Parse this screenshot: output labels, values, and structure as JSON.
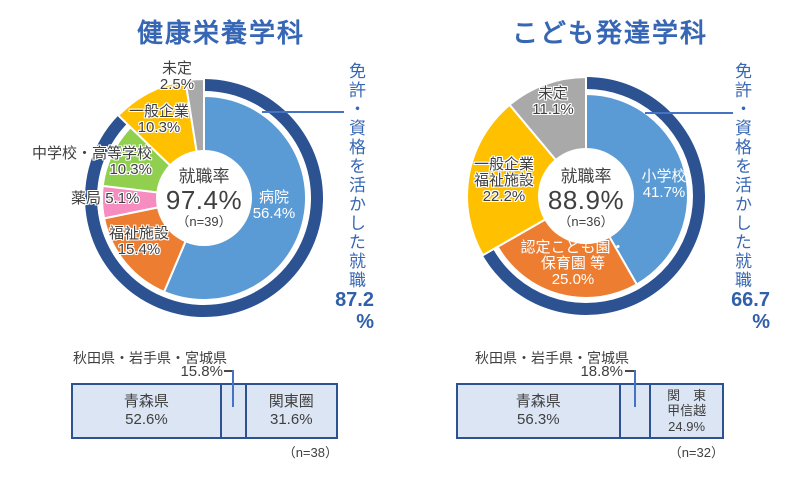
{
  "chart_data": [
    {
      "type": "donut",
      "title": "健康栄養学科",
      "center": {
        "label": "就職率",
        "value": "97.4%",
        "n": "（n=39）"
      },
      "slices": [
        {
          "name": "病院",
          "value": 56.4,
          "pct": "56.4%",
          "color": "#5b9bd5",
          "full": false
        },
        {
          "name": "福祉施設",
          "value": 15.4,
          "pct": "15.4%",
          "color": "#ed7d31",
          "full": false
        },
        {
          "name": "薬局",
          "value": 5.1,
          "pct": "5.1%",
          "color": "#f78cc1",
          "full": false
        },
        {
          "name": "中学校・高等学校",
          "value": 10.3,
          "pct": "10.3%",
          "color": "#90d04e",
          "full": false
        },
        {
          "name": "一般企業",
          "value": 10.3,
          "pct": "10.3%",
          "color": "#ffc000",
          "full": true
        },
        {
          "name": "未定",
          "value": 2.5,
          "pct": "2.5%",
          "color": "#a9a9a9",
          "full": true
        }
      ],
      "ring": {
        "label": "免許・資格を活かした就職",
        "value": 87.2,
        "value_text": "87.2",
        "unit": "%",
        "color": "#2c5291"
      },
      "region_bar": {
        "note_label": "秋田県・岩手県・宮城県",
        "note_pct": "15.8%",
        "note_value": 15.8,
        "segments": [
          {
            "label": "青森県",
            "pct": "52.6%",
            "value": 52.6
          },
          {
            "label": "",
            "pct": "",
            "value": 15.8
          },
          {
            "label": "関東圏",
            "pct": "31.6%",
            "value": 31.6
          }
        ],
        "n": "（n=38）"
      }
    },
    {
      "type": "donut",
      "title": "こども発達学科",
      "center": {
        "label": "就職率",
        "value": "88.9%",
        "n": "（n=36）"
      },
      "slices": [
        {
          "name": "小学校",
          "value": 41.7,
          "pct": "41.7%",
          "color": "#5b9bd5",
          "full": false
        },
        {
          "name": "認定こども園・保育園 等",
          "name_l1": "認定こども園・",
          "name_l2": "保育園 等",
          "value": 25.0,
          "pct": "25.0%",
          "color": "#ed7d31",
          "full": false
        },
        {
          "name": "一般企業福祉施設",
          "name_l1": "一般企業",
          "name_l2": "福祉施設",
          "value": 22.2,
          "pct": "22.2%",
          "color": "#ffc000",
          "full": true
        },
        {
          "name": "未定",
          "value": 11.1,
          "pct": "11.1%",
          "color": "#a9a9a9",
          "full": true
        }
      ],
      "ring": {
        "label": "免許・資格を活かした就職",
        "value": 66.7,
        "value_text": "66.7",
        "unit": "%",
        "color": "#2c5291"
      },
      "region_bar": {
        "note_label": "秋田県・岩手県・宮城県",
        "note_pct": "18.8%",
        "note_value": 18.8,
        "segments": [
          {
            "label": "青森県",
            "pct": "56.3%",
            "value": 56.3
          },
          {
            "label": "",
            "pct": "",
            "value": 18.8
          },
          {
            "label": "関東甲信越",
            "label_l1": "関　東",
            "label_l2": "甲信越",
            "pct": "24.9%",
            "value": 24.9
          }
        ],
        "n": "（n=32）"
      }
    }
  ]
}
